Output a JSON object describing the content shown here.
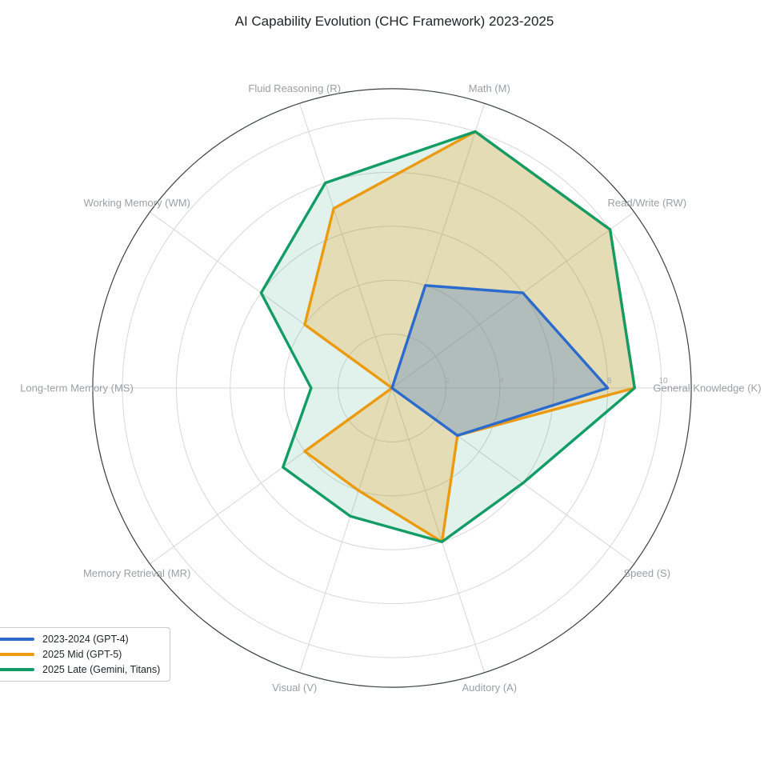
{
  "title": "AI Capability Evolution (CHC Framework) 2023-2025",
  "chart_data": {
    "type": "radar",
    "categories": [
      "General Knowledge (K)",
      "Read/Write (RW)",
      "Math (M)",
      "Fluid Reasoning (R)",
      "Working Memory (WM)",
      "Long-term Memory (MS)",
      "Memory Retrieval (MR)",
      "Visual (V)",
      "Auditory (A)",
      "Speed (S)"
    ],
    "series": [
      {
        "name": "2023-2024 (GPT-4)",
        "color": "#2b6bcd",
        "fill_opacity": 0.27,
        "values": [
          8,
          6,
          4,
          0,
          0,
          0,
          0,
          0,
          0,
          3
        ]
      },
      {
        "name": "2025 Mid (GPT-5)",
        "color": "#ec9b10",
        "fill_opacity": 0.25,
        "values": [
          9,
          10,
          10,
          7,
          4,
          0,
          4,
          4,
          6,
          3
        ]
      },
      {
        "name": "2025 Late (Gemini, Titans)",
        "color": "#139c66",
        "fill_opacity": 0.13,
        "values": [
          9,
          10,
          10,
          8,
          6,
          3,
          5,
          5,
          6,
          6
        ]
      }
    ],
    "radial_ticks": [
      2,
      4,
      6,
      8,
      10
    ],
    "r_max": 10,
    "outer_ring": 11.1,
    "start_angle_deg": 0,
    "direction": "counterclockwise",
    "grid": true,
    "legend_position": "lower-left"
  },
  "style": {
    "grid_color": "#d7d7d7",
    "spine_color": "#3c4043",
    "axis_label_color": "#9aa0a6",
    "tick_label_color": "#a6a9ad",
    "title_color": "#212428"
  }
}
